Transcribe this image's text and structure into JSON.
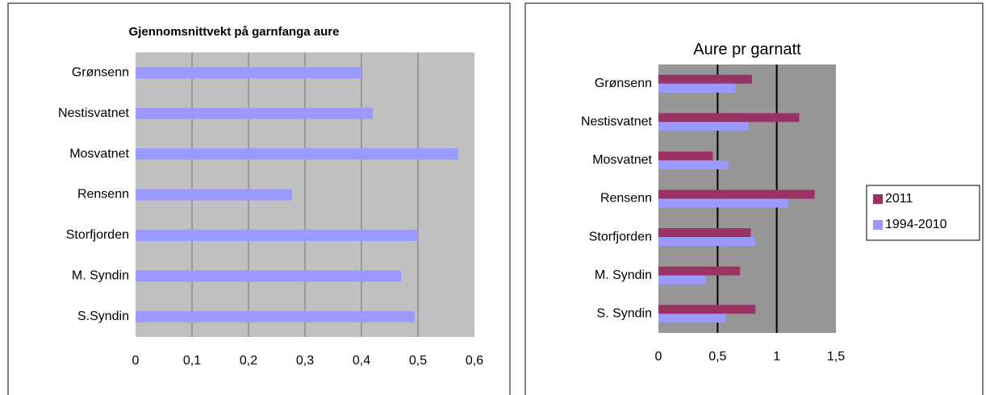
{
  "chart_data": [
    {
      "type": "bar",
      "orientation": "horizontal",
      "title": "Gjennomsnittvekt på garnfanga aure",
      "categories": [
        "Grønsenn",
        "Nestisvatnet",
        "Mosvatnet",
        "Rensenn",
        "Storfjorden",
        "M. Syndin",
        "S.Syndin"
      ],
      "values": [
        0.4,
        0.42,
        0.571,
        0.277,
        0.5,
        0.47,
        0.494
      ],
      "color": "#9999ff",
      "xlim": [
        0,
        0.6
      ],
      "xticks": [
        0,
        {
          "value": 0.1,
          "label": "0,1"
        },
        {
          "value": 0.2,
          "label": "0,2"
        },
        {
          "value": 0.3,
          "label": "0,3"
        },
        {
          "value": 0.4,
          "label": "0,4"
        },
        {
          "value": 0.5,
          "label": "0,5"
        },
        {
          "value": 0.6,
          "label": "0,6"
        }
      ],
      "grid": true
    },
    {
      "type": "bar",
      "orientation": "horizontal",
      "title": "Aure pr garnatt",
      "categories": [
        "Grønsenn",
        "Nestisvatnet",
        "Mosvatnet",
        "Rensenn",
        "Storfjorden",
        "M. Syndin",
        "S. Syndin"
      ],
      "series": [
        {
          "name": "2011",
          "color": "#993366",
          "values": [
            0.79,
            1.19,
            0.46,
            1.32,
            0.78,
            0.69,
            0.82
          ]
        },
        {
          "name": "1994-2010",
          "color": "#9999ff",
          "values": [
            0.65,
            0.76,
            0.59,
            1.1,
            0.82,
            0.4,
            0.57
          ]
        }
      ],
      "xlim": [
        0,
        1.5
      ],
      "xticks": [
        0,
        {
          "value": 0.5,
          "label": "0,5"
        },
        1,
        {
          "value": 1.5,
          "label": "1,5"
        }
      ],
      "grid": true,
      "legend": "right"
    }
  ]
}
